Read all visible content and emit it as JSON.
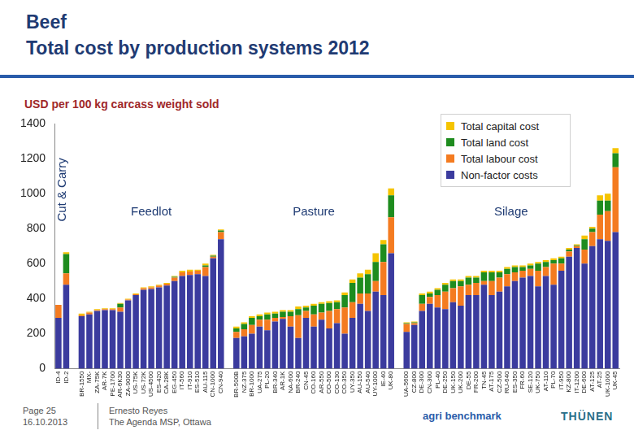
{
  "header": {
    "title": "Beef",
    "subtitle": "Total cost by production systems 2012"
  },
  "chart_data": {
    "type": "bar",
    "stacked": true,
    "y_label": "USD per 100 kg carcass weight sold",
    "annotations": [
      "Cut & Carry",
      "Feedlot",
      "Pasture",
      "Silage"
    ],
    "categories": [
      "ID-4",
      "ID-2",
      null,
      "BR-1550",
      "MX-",
      "ZA-75K",
      "AR-7K",
      "PE-1700",
      "AR-6K30",
      "ZA-9000",
      "US-75K",
      "US-72K",
      "US-4500",
      "ES-420",
      "CA-28K",
      "EG-450",
      "IT-560",
      "IT-910",
      "ES-510",
      "AU-115",
      "CN-1000",
      "CN-940",
      null,
      "BR-500B",
      "NZ-375",
      "BR-1000",
      "UA-275",
      "PL-20",
      "BR-340",
      "AR-1K",
      "NA-600",
      "BR-240",
      "CN-45",
      "CO-160",
      "AR-550",
      "CO-500",
      "CO-130",
      "CO-350",
      "UY-350",
      "AU-150",
      "AU-540",
      "UY-1000",
      "IE-40",
      "UK-80",
      null,
      "UA-5600",
      "CZ-800",
      "DE-300",
      "CN-300",
      "PL-40",
      "DE-250",
      "UK-150",
      "UK-200",
      "DE-55",
      "FR-200",
      "TN-45",
      "AT-175",
      "CZ-500",
      "RU-640",
      "ES-350",
      "FR-60",
      "SE-120",
      "UK-750",
      "AT-110",
      "PL-70",
      "IT-950",
      "KZ-800",
      "IT-1200",
      "DE-600",
      "AT-125",
      "AT-25",
      "UK-1000",
      "UK-45"
    ],
    "series": [
      {
        "name": "Non-factor costs",
        "color": "#3b3b9e",
        "values": [
          290,
          480,
          null,
          300,
          310,
          330,
          335,
          335,
          325,
          390,
          420,
          450,
          455,
          465,
          475,
          500,
          530,
          535,
          540,
          530,
          630,
          740,
          null,
          175,
          185,
          200,
          240,
          220,
          270,
          285,
          240,
          175,
          290,
          240,
          280,
          230,
          260,
          200,
          290,
          370,
          330,
          440,
          420,
          660,
          null,
          210,
          250,
          330,
          370,
          350,
          340,
          380,
          360,
          420,
          420,
          480,
          420,
          440,
          470,
          500,
          520,
          530,
          470,
          530,
          480,
          560,
          640,
          690,
          600,
          700,
          740,
          730,
          780
        ]
      },
      {
        "name": "Total labour cost",
        "color": "#f47b20",
        "values": [
          75,
          65,
          null,
          5,
          10,
          5,
          5,
          5,
          25,
          5,
          5,
          10,
          10,
          10,
          10,
          20,
          20,
          20,
          20,
          50,
          10,
          40,
          null,
          35,
          40,
          50,
          40,
          60,
          20,
          10,
          60,
          130,
          40,
          70,
          40,
          100,
          80,
          150,
          90,
          60,
          100,
          60,
          190,
          205,
          null,
          45,
          10,
          40,
          40,
          70,
          100,
          80,
          110,
          60,
          70,
          20,
          80,
          80,
          70,
          50,
          40,
          40,
          90,
          50,
          120,
          40,
          30,
          10,
          80,
          80,
          140,
          170,
          370
        ]
      },
      {
        "name": "Total land cost",
        "color": "#1e8c1e",
        "values": [
          0,
          110,
          null,
          0,
          0,
          0,
          0,
          0,
          20,
          0,
          0,
          0,
          0,
          0,
          0,
          5,
          0,
          0,
          0,
          10,
          5,
          10,
          null,
          20,
          30,
          40,
          20,
          30,
          25,
          30,
          25,
          35,
          20,
          50,
          50,
          45,
          40,
          70,
          110,
          90,
          110,
          110,
          100,
          125,
          null,
          5,
          5,
          50,
          20,
          30,
          40,
          40,
          30,
          40,
          30,
          50,
          50,
          30,
          30,
          30,
          20,
          20,
          40,
          30,
          20,
          30,
          10,
          5,
          60,
          20,
          80,
          60,
          80
        ]
      },
      {
        "name": "Total capital cost",
        "color": "#f5c400",
        "values": [
          0,
          10,
          null,
          10,
          5,
          5,
          5,
          5,
          5,
          5,
          5,
          5,
          5,
          5,
          5,
          5,
          10,
          10,
          5,
          10,
          5,
          5,
          null,
          10,
          10,
          10,
          10,
          10,
          10,
          10,
          10,
          15,
          10,
          10,
          10,
          10,
          10,
          15,
          20,
          25,
          25,
          50,
          25,
          40,
          null,
          5,
          5,
          10,
          10,
          10,
          10,
          10,
          10,
          10,
          10,
          10,
          10,
          10,
          10,
          10,
          10,
          10,
          10,
          10,
          10,
          10,
          10,
          5,
          20,
          10,
          30,
          40,
          30
        ]
      }
    ],
    "ylim": [
      0,
      1400
    ],
    "yticks": [
      0,
      200,
      400,
      600,
      800,
      1000,
      1200,
      1400
    ],
    "grid": false,
    "legend": "upper right"
  },
  "footer": {
    "page": "Page 25",
    "date": "16.10.2013",
    "author": "Ernesto Reyes",
    "event": "The Agenda MSP, Ottawa",
    "logos": [
      "agri benchmark",
      "THÜNEN"
    ]
  }
}
